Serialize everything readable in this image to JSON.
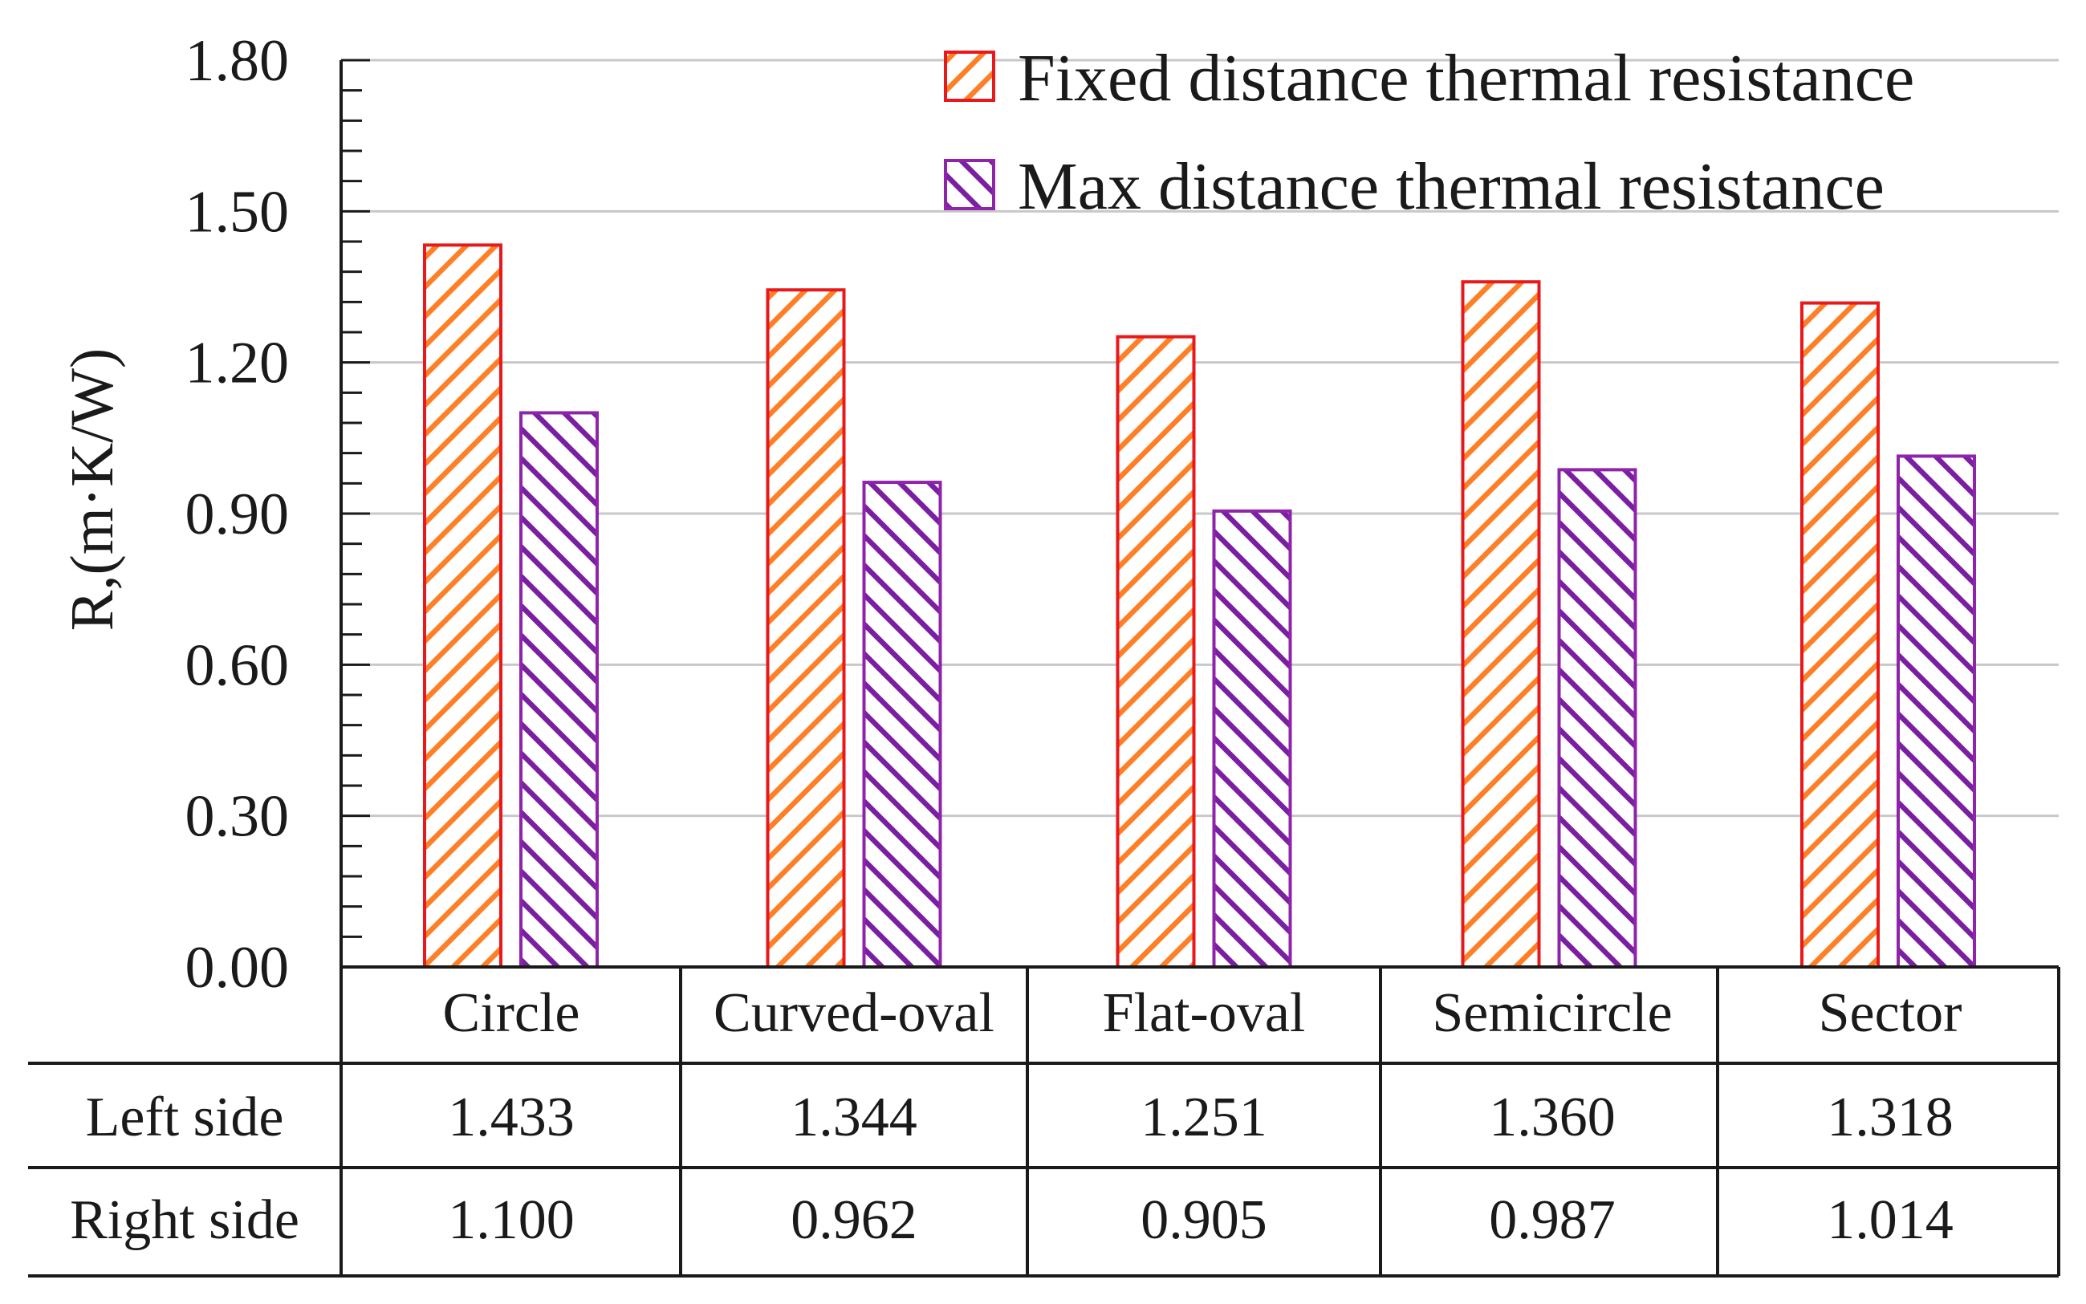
{
  "chart_data": {
    "type": "bar",
    "title": "",
    "xlabel": "",
    "ylabel": "R,(m·K/W)",
    "ylim": [
      0,
      1.8
    ],
    "yticks": [
      "0.00",
      "0.30",
      "0.60",
      "0.90",
      "1.20",
      "1.50",
      "1.80"
    ],
    "grid": true,
    "legend_position": "top-right",
    "categories": [
      "Circle",
      "Curved-oval",
      "Flat-oval",
      "Semicircle",
      "Sector"
    ],
    "series": [
      {
        "name": "Fixed distance thermal resistance",
        "table_label": "Left side",
        "values": [
          1.433,
          1.344,
          1.251,
          1.36,
          1.318
        ],
        "value_labels": [
          "1.433",
          "1.344",
          "1.251",
          "1.360",
          "1.318"
        ],
        "color": "#ff7f27",
        "border_color": "#e8191b"
      },
      {
        "name": "Max distance thermal resistance",
        "table_label": "Right side",
        "values": [
          1.1,
          0.962,
          0.905,
          0.987,
          1.014
        ],
        "value_labels": [
          "1.100",
          "0.962",
          "0.905",
          "0.987",
          "1.014"
        ],
        "color": "#7b1fa2",
        "border_color": "#8e24aa"
      }
    ]
  }
}
